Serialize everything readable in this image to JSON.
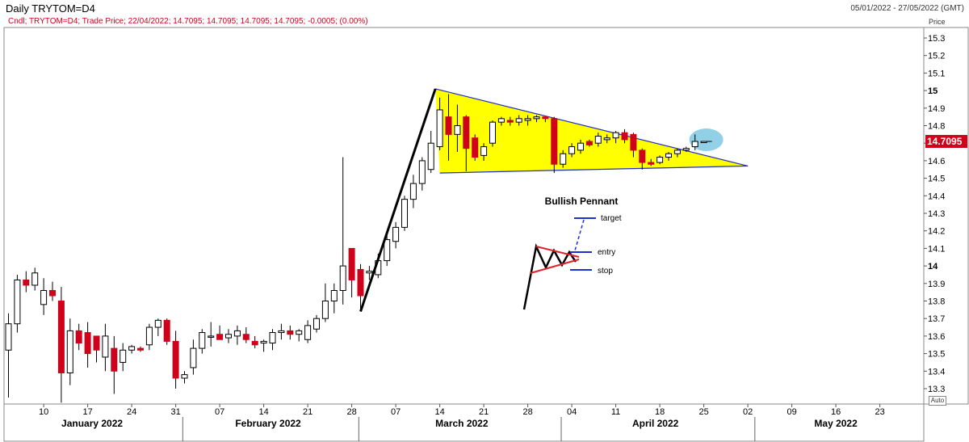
{
  "header": {
    "title": "Daily TRYTOM=D4",
    "date_range": "05/01/2022 - 27/05/2022 (GMT)",
    "info_line": "Cndl; TRYTOM=D4; Trade Price; 22/04/2022; 14.7095; 14.7095; 14.7095; 14.7095; -0.0005; (0.00%)",
    "price_axis_label": "Price",
    "auto_button": "Auto",
    "last_price": "14.7095"
  },
  "colors": {
    "up_fill": "#ffffff",
    "down_fill": "#d0021b",
    "pennant_fill": "#ffff00",
    "trendline": "#2030c0",
    "highlight": "#7ec8e3"
  },
  "chart_data": {
    "type": "candlestick",
    "ylim": [
      13.25,
      15.35
    ],
    "y_ticks": [
      {
        "v": 15.3,
        "label": "15.3"
      },
      {
        "v": 15.2,
        "label": "15.2"
      },
      {
        "v": 15.1,
        "label": "15.1"
      },
      {
        "v": 15.0,
        "label": "15",
        "bold": true
      },
      {
        "v": 14.9,
        "label": "14.9"
      },
      {
        "v": 14.8,
        "label": "14.8"
      },
      {
        "v": 14.7,
        "label": "14.7"
      },
      {
        "v": 14.6,
        "label": "14.6"
      },
      {
        "v": 14.5,
        "label": "14.5"
      },
      {
        "v": 14.4,
        "label": "14.4"
      },
      {
        "v": 14.3,
        "label": "14.3"
      },
      {
        "v": 14.2,
        "label": "14.2"
      },
      {
        "v": 14.1,
        "label": "14.1"
      },
      {
        "v": 14.0,
        "label": "14",
        "bold": true
      },
      {
        "v": 13.9,
        "label": "13.9"
      },
      {
        "v": 13.8,
        "label": "13.8"
      },
      {
        "v": 13.7,
        "label": "13.7"
      },
      {
        "v": 13.6,
        "label": "13.6"
      },
      {
        "v": 13.5,
        "label": "13.5"
      },
      {
        "v": 13.4,
        "label": "13.4"
      },
      {
        "v": 13.3,
        "label": "13.3"
      }
    ],
    "x_day_ticks": [
      {
        "i": 4,
        "label": "10"
      },
      {
        "i": 9,
        "label": "17"
      },
      {
        "i": 14,
        "label": "24"
      },
      {
        "i": 19,
        "label": "31"
      },
      {
        "i": 24,
        "label": "07"
      },
      {
        "i": 29,
        "label": "14"
      },
      {
        "i": 34,
        "label": "21"
      },
      {
        "i": 39,
        "label": "28"
      },
      {
        "i": 44,
        "label": "07"
      },
      {
        "i": 49,
        "label": "14"
      },
      {
        "i": 54,
        "label": "21"
      },
      {
        "i": 59,
        "label": "28"
      },
      {
        "i": 64,
        "label": "04"
      },
      {
        "i": 69,
        "label": "11"
      },
      {
        "i": 74,
        "label": "18"
      },
      {
        "i": 79,
        "label": "25"
      },
      {
        "i": 84,
        "label": "02"
      },
      {
        "i": 89,
        "label": "09"
      },
      {
        "i": 94,
        "label": "16"
      },
      {
        "i": 99,
        "label": "23"
      }
    ],
    "months": [
      {
        "label": "January 2022",
        "center_i": 9.5,
        "sep_i": 19.8
      },
      {
        "label": "February 2022",
        "center_i": 29.5,
        "sep_i": 39.8
      },
      {
        "label": "March 2022",
        "center_i": 51.5,
        "sep_i": 62.8
      },
      {
        "label": "April 2022",
        "center_i": 73.5,
        "sep_i": 84.8
      },
      {
        "label": "May 2022",
        "center_i": 94,
        "sep_i": null
      }
    ],
    "candles": [
      {
        "i": 0,
        "o": 13.52,
        "h": 13.73,
        "l": 13.25,
        "c": 13.67
      },
      {
        "i": 1,
        "o": 13.67,
        "h": 13.95,
        "l": 13.62,
        "c": 13.92
      },
      {
        "i": 2,
        "o": 13.92,
        "h": 13.97,
        "l": 13.85,
        "c": 13.89
      },
      {
        "i": 3,
        "o": 13.89,
        "h": 13.99,
        "l": 13.86,
        "c": 13.96
      },
      {
        "i": 4,
        "o": 13.78,
        "h": 13.93,
        "l": 13.72,
        "c": 13.86
      },
      {
        "i": 5,
        "o": 13.86,
        "h": 13.91,
        "l": 13.8,
        "c": 13.83
      },
      {
        "i": 6,
        "o": 13.8,
        "h": 13.88,
        "l": 13.22,
        "c": 13.39
      },
      {
        "i": 7,
        "o": 13.39,
        "h": 13.7,
        "l": 13.32,
        "c": 13.63
      },
      {
        "i": 8,
        "o": 13.63,
        "h": 13.67,
        "l": 13.52,
        "c": 13.56
      },
      {
        "i": 9,
        "o": 13.62,
        "h": 13.68,
        "l": 13.42,
        "c": 13.5
      },
      {
        "i": 10,
        "o": 13.6,
        "h": 13.6,
        "l": 13.45,
        "c": 13.52
      },
      {
        "i": 11,
        "o": 13.48,
        "h": 13.67,
        "l": 13.4,
        "c": 13.6
      },
      {
        "i": 12,
        "o": 13.53,
        "h": 13.6,
        "l": 13.27,
        "c": 13.4
      },
      {
        "i": 13,
        "o": 13.45,
        "h": 13.56,
        "l": 13.4,
        "c": 13.52
      },
      {
        "i": 14,
        "o": 13.52,
        "h": 13.55,
        "l": 13.5,
        "c": 13.54
      },
      {
        "i": 15,
        "o": 13.53,
        "h": 13.54,
        "l": 13.51,
        "c": 13.52
      },
      {
        "i": 16,
        "o": 13.55,
        "h": 13.67,
        "l": 13.52,
        "c": 13.65
      },
      {
        "i": 17,
        "o": 13.65,
        "h": 13.7,
        "l": 13.6,
        "c": 13.69
      },
      {
        "i": 18,
        "o": 13.69,
        "h": 13.7,
        "l": 13.55,
        "c": 13.57
      },
      {
        "i": 19,
        "o": 13.57,
        "h": 13.63,
        "l": 13.3,
        "c": 13.36
      },
      {
        "i": 20,
        "o": 13.36,
        "h": 13.4,
        "l": 13.33,
        "c": 13.38
      },
      {
        "i": 21,
        "o": 13.42,
        "h": 13.58,
        "l": 13.38,
        "c": 13.53
      },
      {
        "i": 22,
        "o": 13.53,
        "h": 13.64,
        "l": 13.5,
        "c": 13.62
      },
      {
        "i": 23,
        "o": 13.6,
        "h": 13.68,
        "l": 13.54,
        "c": 13.6
      },
      {
        "i": 24,
        "o": 13.61,
        "h": 13.66,
        "l": 13.58,
        "c": 13.58
      },
      {
        "i": 25,
        "o": 13.59,
        "h": 13.64,
        "l": 13.56,
        "c": 13.61
      },
      {
        "i": 26,
        "o": 13.6,
        "h": 13.66,
        "l": 13.55,
        "c": 13.63
      },
      {
        "i": 27,
        "o": 13.61,
        "h": 13.65,
        "l": 13.56,
        "c": 13.58
      },
      {
        "i": 28,
        "o": 13.57,
        "h": 13.6,
        "l": 13.53,
        "c": 13.55
      },
      {
        "i": 29,
        "o": 13.56,
        "h": 13.58,
        "l": 13.51,
        "c": 13.57
      },
      {
        "i": 30,
        "o": 13.56,
        "h": 13.64,
        "l": 13.52,
        "c": 13.62
      },
      {
        "i": 31,
        "o": 13.62,
        "h": 13.67,
        "l": 13.58,
        "c": 13.63
      },
      {
        "i": 32,
        "o": 13.63,
        "h": 13.66,
        "l": 13.58,
        "c": 13.61
      },
      {
        "i": 33,
        "o": 13.61,
        "h": 13.64,
        "l": 13.57,
        "c": 13.63
      },
      {
        "i": 34,
        "o": 13.58,
        "h": 13.69,
        "l": 13.56,
        "c": 13.66
      },
      {
        "i": 35,
        "o": 13.64,
        "h": 13.72,
        "l": 13.62,
        "c": 13.7
      },
      {
        "i": 36,
        "o": 13.7,
        "h": 13.9,
        "l": 13.68,
        "c": 13.8
      },
      {
        "i": 37,
        "o": 13.8,
        "h": 13.9,
        "l": 13.73,
        "c": 13.86
      },
      {
        "i": 38,
        "o": 13.86,
        "h": 14.62,
        "l": 13.78,
        "c": 14.0
      },
      {
        "i": 39,
        "o": 14.1,
        "h": 14.1,
        "l": 13.82,
        "c": 13.92
      },
      {
        "i": 40,
        "o": 13.98,
        "h": 14.01,
        "l": 13.75,
        "c": 13.83
      },
      {
        "i": 41,
        "o": 13.96,
        "h": 14.0,
        "l": 13.92,
        "c": 13.97
      },
      {
        "i": 42,
        "o": 13.95,
        "h": 14.07,
        "l": 13.93,
        "c": 14.03
      },
      {
        "i": 43,
        "o": 14.03,
        "h": 14.18,
        "l": 14.0,
        "c": 14.15
      },
      {
        "i": 44,
        "o": 14.14,
        "h": 14.25,
        "l": 14.1,
        "c": 14.22
      },
      {
        "i": 45,
        "o": 14.22,
        "h": 14.4,
        "l": 14.2,
        "c": 14.38
      },
      {
        "i": 46,
        "o": 14.38,
        "h": 14.52,
        "l": 14.33,
        "c": 14.47
      },
      {
        "i": 47,
        "o": 14.47,
        "h": 14.62,
        "l": 14.43,
        "c": 14.6
      },
      {
        "i": 48,
        "o": 14.55,
        "h": 14.77,
        "l": 14.53,
        "c": 14.7
      },
      {
        "i": 49,
        "o": 14.68,
        "h": 14.96,
        "l": 14.66,
        "c": 14.89
      },
      {
        "i": 50,
        "o": 14.85,
        "h": 14.98,
        "l": 14.6,
        "c": 14.75
      },
      {
        "i": 51,
        "o": 14.75,
        "h": 14.92,
        "l": 14.65,
        "c": 14.8
      },
      {
        "i": 52,
        "o": 14.85,
        "h": 14.86,
        "l": 14.54,
        "c": 14.67
      },
      {
        "i": 53,
        "o": 14.73,
        "h": 14.75,
        "l": 14.6,
        "c": 14.62
      },
      {
        "i": 54,
        "o": 14.63,
        "h": 14.7,
        "l": 14.6,
        "c": 14.68
      },
      {
        "i": 55,
        "o": 14.7,
        "h": 14.83,
        "l": 14.68,
        "c": 14.82
      },
      {
        "i": 56,
        "o": 14.82,
        "h": 14.85,
        "l": 14.8,
        "c": 14.84
      },
      {
        "i": 57,
        "o": 14.83,
        "h": 14.85,
        "l": 14.8,
        "c": 14.82
      },
      {
        "i": 58,
        "o": 14.82,
        "h": 14.86,
        "l": 14.8,
        "c": 14.84
      },
      {
        "i": 59,
        "o": 14.83,
        "h": 14.86,
        "l": 14.8,
        "c": 14.84
      },
      {
        "i": 60,
        "o": 14.84,
        "h": 14.86,
        "l": 14.82,
        "c": 14.85
      },
      {
        "i": 61,
        "o": 14.85,
        "h": 14.85,
        "l": 14.82,
        "c": 14.84
      },
      {
        "i": 62,
        "o": 14.84,
        "h": 14.85,
        "l": 14.53,
        "c": 14.58
      },
      {
        "i": 63,
        "o": 14.58,
        "h": 14.66,
        "l": 14.56,
        "c": 14.64
      },
      {
        "i": 64,
        "o": 14.64,
        "h": 14.7,
        "l": 14.62,
        "c": 14.68
      },
      {
        "i": 65,
        "o": 14.66,
        "h": 14.72,
        "l": 14.64,
        "c": 14.7
      },
      {
        "i": 66,
        "o": 14.71,
        "h": 14.72,
        "l": 14.68,
        "c": 14.69
      },
      {
        "i": 67,
        "o": 14.7,
        "h": 14.76,
        "l": 14.68,
        "c": 14.74
      },
      {
        "i": 68,
        "o": 14.72,
        "h": 14.75,
        "l": 14.7,
        "c": 14.73
      },
      {
        "i": 69,
        "o": 14.73,
        "h": 14.77,
        "l": 14.7,
        "c": 14.76
      },
      {
        "i": 70,
        "o": 14.76,
        "h": 14.78,
        "l": 14.7,
        "c": 14.72
      },
      {
        "i": 71,
        "o": 14.75,
        "h": 14.76,
        "l": 14.62,
        "c": 14.66
      },
      {
        "i": 72,
        "o": 14.66,
        "h": 14.67,
        "l": 14.55,
        "c": 14.59
      },
      {
        "i": 73,
        "o": 14.59,
        "h": 14.61,
        "l": 14.57,
        "c": 14.58
      },
      {
        "i": 74,
        "o": 14.59,
        "h": 14.63,
        "l": 14.58,
        "c": 14.62
      },
      {
        "i": 75,
        "o": 14.62,
        "h": 14.65,
        "l": 14.6,
        "c": 14.64
      },
      {
        "i": 76,
        "o": 14.64,
        "h": 14.67,
        "l": 14.62,
        "c": 14.66
      },
      {
        "i": 77,
        "o": 14.66,
        "h": 14.68,
        "l": 14.65,
        "c": 14.67
      },
      {
        "i": 78,
        "o": 14.68,
        "h": 14.75,
        "l": 14.66,
        "c": 14.71
      },
      {
        "i": 79,
        "o": 14.71,
        "h": 14.71,
        "l": 14.71,
        "c": 14.71
      }
    ],
    "annotations": {
      "flagpole": [
        {
          "i": 40,
          "p": 13.74
        },
        {
          "i": 48.5,
          "p": 15.01
        }
      ],
      "pennant": [
        {
          "i": 48.5,
          "p": 15.01
        },
        {
          "i": 49,
          "p": 14.53
        },
        {
          "i": 84,
          "p": 14.57
        }
      ],
      "highlight": {
        "i": 79,
        "p": 14.71
      },
      "inset": {
        "title": "Bullish Pennant",
        "target_label": "target",
        "entry_label": "entry",
        "stop_label": "stop"
      }
    }
  }
}
